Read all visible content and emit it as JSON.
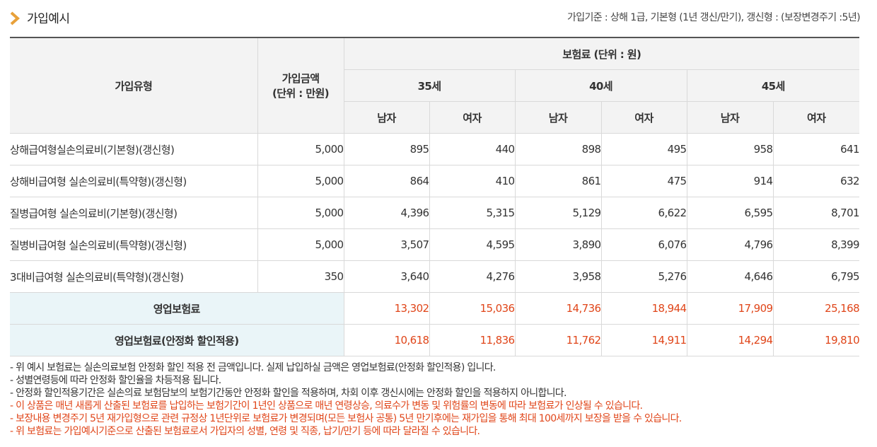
{
  "header": {
    "title": "가입예시",
    "criteria": "가입기준 : 상해 1급, 기본형 (1년 갱신/만기), 갱신형 : (보장변경주기 :5년)"
  },
  "colors": {
    "accent": "#e8a13a",
    "highlight": "#e0461a",
    "sum_bg": "#eaf5f8",
    "header_bg": "#f3f3f3"
  },
  "table": {
    "col_type": "가입유형",
    "col_amount_line1": "가입금액",
    "col_amount_line2": "(단위 : 만원)",
    "col_premium": "보험료 (단위 : 원)",
    "ages": [
      "35세",
      "40세",
      "45세"
    ],
    "genders": [
      "남자",
      "여자",
      "남자",
      "여자",
      "남자",
      "여자"
    ],
    "rows": [
      {
        "name": "상해급여형실손의료비(기본형)(갱신형)",
        "amount": "5,000",
        "values": [
          "895",
          "440",
          "898",
          "495",
          "958",
          "641"
        ]
      },
      {
        "name": "상해비급여형 실손의료비(특약형)(갱신형)",
        "amount": "5,000",
        "values": [
          "864",
          "410",
          "861",
          "475",
          "914",
          "632"
        ]
      },
      {
        "name": "질병급여형 실손의료비(기본형)(갱신형)",
        "amount": "5,000",
        "values": [
          "4,396",
          "5,315",
          "5,129",
          "6,622",
          "6,595",
          "8,701"
        ]
      },
      {
        "name": "질병비급여형 실손의료비(특약형)(갱신형)",
        "amount": "5,000",
        "values": [
          "3,507",
          "4,595",
          "3,890",
          "6,076",
          "4,796",
          "8,399"
        ]
      },
      {
        "name": "3대비급여형 실손의료비(특약형)(갱신형)",
        "amount": "350",
        "values": [
          "3,640",
          "4,276",
          "3,958",
          "5,276",
          "4,646",
          "6,795"
        ]
      }
    ],
    "totals": [
      {
        "label": "영업보험료",
        "values": [
          "13,302",
          "15,036",
          "14,736",
          "18,944",
          "17,909",
          "25,168"
        ]
      },
      {
        "label": "영업보험료(안정화 할인적용)",
        "values": [
          "10,618",
          "11,836",
          "11,762",
          "14,911",
          "14,294",
          "19,810"
        ]
      }
    ]
  },
  "notes": [
    {
      "text": "- 위 예시 보험료는 실손의료보험 안정화 할인 적용 전 금액입니다. 실제 납입하실 금액은 영업보험료(안정화 할인적용) 입니다.",
      "warn": false
    },
    {
      "text": "- 성별연령등에 따라 안정화 할인율을 차등적용 됩니다.",
      "warn": false
    },
    {
      "text": "- 안정화 할인적용기간은 실손의료 보험담보의 보험기간동안 안정화 할인을 적용하며, 차회 이후 갱신시에는 안정화 할인을 적용하지 아니합니다.",
      "warn": false
    },
    {
      "text": "- 이 상품은 매년 새롭게 산출된 보험료를 납입하는 보험기간이 1년인 상품으로 매년 연령상승, 의료수가 변동 및 위험률의 변동에 따라 보험료가 인상될 수 있습니다.",
      "warn": true
    },
    {
      "text": "- 보장내용 변경주기 5년 재가입형으로 관련 규정상 1년단위로 보험료가 변경되며(모든 보험사 공통) 5년 만기후에는 재가입을 통해 최대 100세까지 보장을 받을 수 있습니다.",
      "warn": true
    },
    {
      "text": "- 위 보험료는 가입예시기준으로 산출된 보험료로서 가입자의 성별, 연령 및 직종, 납기/만기 등에 따라 달라질 수 있습니다.",
      "warn": true
    }
  ]
}
